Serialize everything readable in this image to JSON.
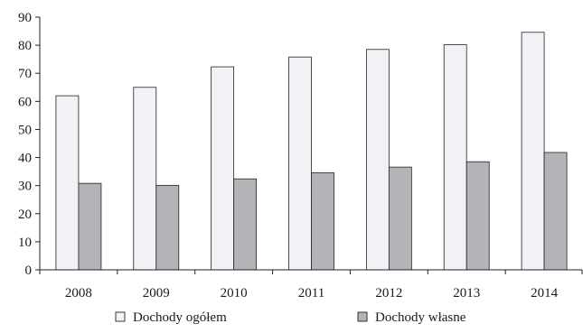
{
  "chart_data": {
    "type": "bar",
    "categories": [
      "2008",
      "2009",
      "2010",
      "2011",
      "2012",
      "2013",
      "2014"
    ],
    "series": [
      {
        "name": "Dochody ogółem",
        "values": [
          62,
          65,
          72.3,
          75.8,
          78.5,
          80.2,
          84.6
        ],
        "color": "#f2f2f6"
      },
      {
        "name": "Dochody własne",
        "values": [
          30.8,
          30.1,
          32.4,
          34.6,
          36.6,
          38.5,
          41.8
        ],
        "color": "#b4b4b8"
      }
    ],
    "title": "",
    "xlabel": "",
    "ylabel": "",
    "ylim": [
      0,
      90
    ],
    "yticks": [
      0,
      10,
      20,
      30,
      40,
      50,
      60,
      70,
      80,
      90
    ],
    "grid": false,
    "legend": "bottom"
  }
}
